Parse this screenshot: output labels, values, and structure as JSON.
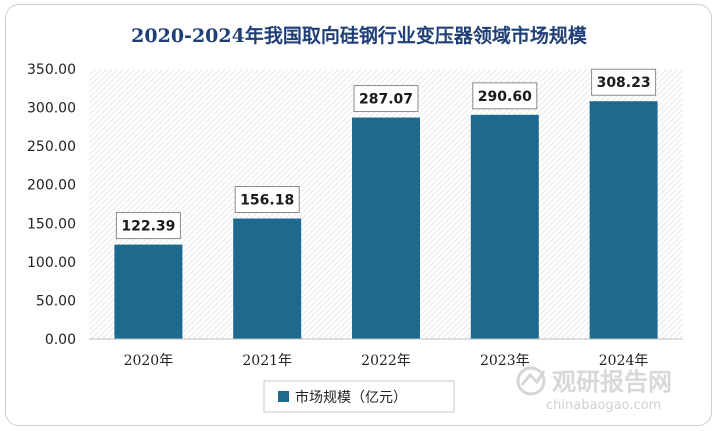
{
  "chart_data": {
    "type": "bar",
    "title": "2020-2024年我国取向硅钢行业变压器领域市场规模",
    "categories": [
      "2020年",
      "2021年",
      "2022年",
      "2023年",
      "2024年"
    ],
    "series": [
      {
        "name": "市场规模（亿元）",
        "values": [
          122.39,
          156.18,
          287.07,
          290.6,
          308.23
        ]
      }
    ],
    "value_labels": [
      "122.39",
      "156.18",
      "287.07",
      "290.60",
      "308.23"
    ],
    "yticks": [
      "0.00",
      "50.00",
      "100.00",
      "150.00",
      "200.00",
      "250.00",
      "300.00",
      "350.00"
    ],
    "ylim": [
      0,
      350
    ],
    "grid": false,
    "legend_position": "bottom",
    "bar_color": "#1d6a8e"
  },
  "watermark": {
    "cn": "观研报告网",
    "en": "chinabaogao.com"
  }
}
